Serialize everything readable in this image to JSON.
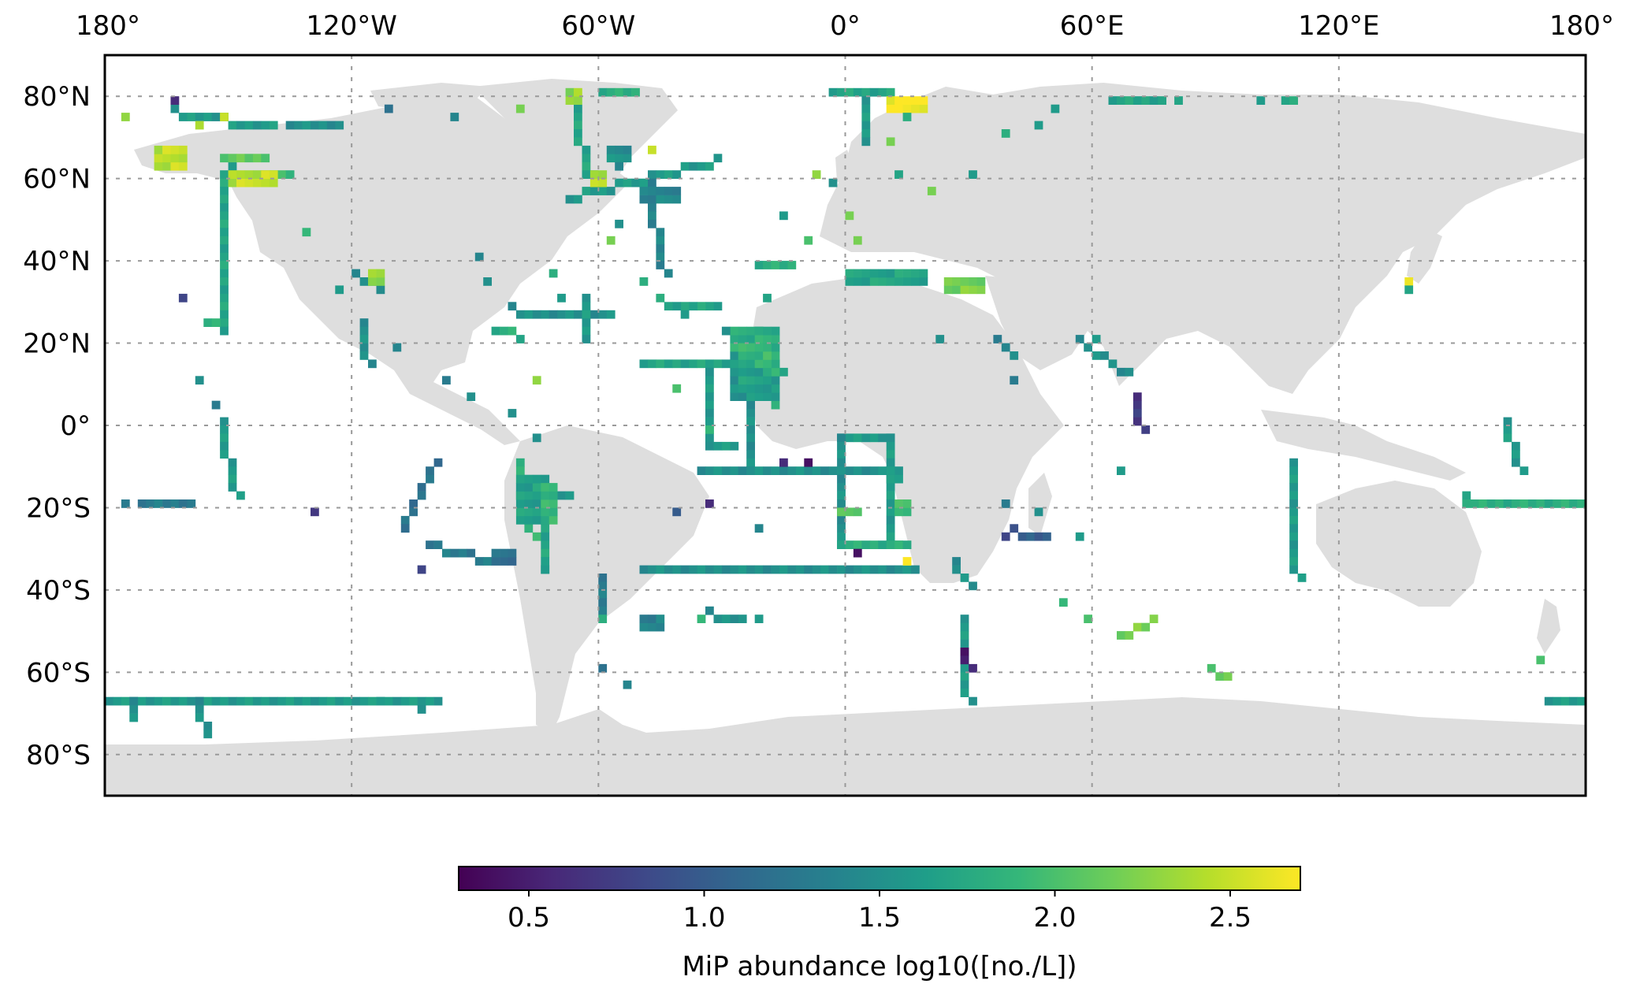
{
  "map": {
    "projection": "PlateCarree",
    "extent": {
      "lon": [
        -180,
        180
      ],
      "lat": [
        -90,
        90
      ]
    },
    "land_color": "#dedede",
    "ocean_color": "#ffffff",
    "gridline_color": "#9a9a9a",
    "x_ticks": [
      {
        "lon": -180,
        "label": "180°"
      },
      {
        "lon": -120,
        "label": "120°W"
      },
      {
        "lon": -60,
        "label": "60°W"
      },
      {
        "lon": 0,
        "label": "0°"
      },
      {
        "lon": 60,
        "label": "60°E"
      },
      {
        "lon": 120,
        "label": "120°E"
      },
      {
        "lon": 180,
        "label": "180°"
      }
    ],
    "y_ticks": [
      {
        "lat": 80,
        "label": "80°N"
      },
      {
        "lat": 60,
        "label": "60°N"
      },
      {
        "lat": 40,
        "label": "40°N"
      },
      {
        "lat": 20,
        "label": "20°N"
      },
      {
        "lat": 0,
        "label": "0°"
      },
      {
        "lat": -20,
        "label": "20°S"
      },
      {
        "lat": -40,
        "label": "40°S"
      },
      {
        "lat": -60,
        "label": "60°S"
      },
      {
        "lat": -80,
        "label": "80°S"
      }
    ]
  },
  "colorbar": {
    "label": "MiP abundance log10([no./L])",
    "vmin": 0.3,
    "vmax": 2.7,
    "colormap": "viridis",
    "colormap_stops": [
      "#440154",
      "#482878",
      "#3e4989",
      "#31688e",
      "#26828e",
      "#1f9e89",
      "#35b779",
      "#6ece58",
      "#b5de2b",
      "#fde725"
    ],
    "ticks": [
      {
        "value": 0.5,
        "label": "0.5"
      },
      {
        "value": 1.0,
        "label": "1.0"
      },
      {
        "value": 1.5,
        "label": "1.5"
      },
      {
        "value": 2.0,
        "label": "2.0"
      },
      {
        "value": 2.5,
        "label": "2.5"
      }
    ]
  },
  "chart_data": {
    "type": "heatmap",
    "cell_size_deg": 2,
    "value_units": "log10([no./L])",
    "segments": [
      {
        "from": [
          -50,
          15
        ],
        "to": [
          -22,
          15
        ],
        "value": 1.7
      },
      {
        "from": [
          -22,
          23
        ],
        "to": [
          -16,
          13
        ],
        "value": 1.8
      },
      {
        "from": [
          -20,
          11
        ],
        "to": [
          -18,
          5
        ],
        "value": 1.9
      },
      {
        "from": [
          -34,
          12
        ],
        "to": [
          -34,
          -4
        ],
        "value": 1.6
      },
      {
        "from": [
          -34,
          -5
        ],
        "to": [
          -28,
          -5
        ],
        "value": 1.6
      },
      {
        "from": [
          -24,
          5
        ],
        "to": [
          -24,
          -12
        ],
        "value": 1.5
      },
      {
        "from": [
          -36,
          -11
        ],
        "to": [
          12,
          -11
        ],
        "value": 1.5
      },
      {
        "from": [
          -50,
          -35
        ],
        "to": [
          16,
          -35
        ],
        "value": 1.5
      },
      {
        "from": [
          -1,
          -3
        ],
        "to": [
          10,
          -3
        ],
        "value": 1.6
      },
      {
        "from": [
          -1,
          -3
        ],
        "to": [
          -1,
          -29
        ],
        "value": 1.5
      },
      {
        "from": [
          11,
          -3
        ],
        "to": [
          12,
          -29
        ],
        "value": 1.6
      },
      {
        "from": [
          -1,
          -29
        ],
        "to": [
          14,
          -29
        ],
        "value": 1.8
      },
      {
        "from": [
          -80,
          -17
        ],
        "to": [
          -68,
          -17
        ],
        "value": 1.6
      },
      {
        "from": [
          -80,
          -10
        ],
        "to": [
          -76,
          -28
        ],
        "value": 1.9
      },
      {
        "from": [
          -72,
          -17
        ],
        "to": [
          -74,
          -36
        ],
        "value": 1.7
      },
      {
        "from": [
          -100,
          -10
        ],
        "to": [
          -108,
          -25
        ],
        "value": 1.2
      },
      {
        "from": [
          -102,
          -29
        ],
        "to": [
          -88,
          -33
        ],
        "value": 1.3
      },
      {
        "from": [
          -172,
          -20
        ],
        "to": [
          -160,
          -20
        ],
        "value": 1.3
      },
      {
        "from": [
          -180,
          -67
        ],
        "to": [
          -100,
          -67
        ],
        "value": 1.6
      },
      {
        "from": [
          -174,
          -67
        ],
        "to": [
          -174,
          -71
        ],
        "value": 1.5
      },
      {
        "from": [
          -158,
          -67
        ],
        "to": [
          -155,
          -75
        ],
        "value": 1.5
      },
      {
        "from": [
          -150,
          62
        ],
        "to": [
          -152,
          22
        ],
        "value": 1.7
      },
      {
        "from": [
          -156,
          24
        ],
        "to": [
          -154,
          24
        ],
        "value": 1.9
      },
      {
        "from": [
          -152,
          0
        ],
        "to": [
          -148,
          -18
        ],
        "value": 1.6
      },
      {
        "from": [
          -152,
          64
        ],
        "to": [
          -142,
          64
        ],
        "value": 2.1
      },
      {
        "from": [
          -142,
          60
        ],
        "to": [
          -136,
          60
        ],
        "value": 1.9
      },
      {
        "from": [
          -164,
          76
        ],
        "to": [
          -140,
          72
        ],
        "value": 1.6
      },
      {
        "from": [
          -136,
          72
        ],
        "to": [
          -124,
          72
        ],
        "value": 1.5
      },
      {
        "from": [
          -119,
          37
        ],
        "to": [
          -114,
          33
        ],
        "value": 1.5
      },
      {
        "from": [
          -118,
          24
        ],
        "to": [
          -116,
          14
        ],
        "value": 1.5
      },
      {
        "from": [
          -82,
          28
        ],
        "to": [
          -58,
          26
        ],
        "value": 1.5
      },
      {
        "from": [
          -64,
          30
        ],
        "to": [
          -64,
          20
        ],
        "value": 1.6
      },
      {
        "from": [
          -86,
          22
        ],
        "to": [
          -82,
          22
        ],
        "value": 1.8
      },
      {
        "from": [
          -68,
          55
        ],
        "to": [
          -32,
          64
        ],
        "value": 1.6
      },
      {
        "from": [
          -48,
          58
        ],
        "to": [
          -44,
          36
        ],
        "value": 1.4
      },
      {
        "from": [
          -60,
          80
        ],
        "to": [
          -52,
          80
        ],
        "value": 1.8
      },
      {
        "from": [
          -66,
          77
        ],
        "to": [
          -62,
          60
        ],
        "value": 1.7
      },
      {
        "from": [
          -22,
          38
        ],
        "to": [
          -14,
          38
        ],
        "value": 1.8
      },
      {
        "from": [
          -32,
          28
        ],
        "to": [
          -46,
          30
        ],
        "value": 1.7
      },
      {
        "from": [
          -4,
          80
        ],
        "to": [
          10,
          80
        ],
        "value": 1.7
      },
      {
        "from": [
          4,
          78
        ],
        "to": [
          4,
          68
        ],
        "value": 1.6
      },
      {
        "from": [
          64,
          78
        ],
        "to": [
          76,
          78
        ],
        "value": 1.7
      },
      {
        "from": [
          106,
          78
        ],
        "to": [
          108,
          78
        ],
        "value": 1.8
      },
      {
        "from": [
          56,
          20
        ],
        "to": [
          68,
          12
        ],
        "value": 1.5
      },
      {
        "from": [
          70,
          6
        ],
        "to": [
          72,
          -2
        ],
        "value": 0.7
      },
      {
        "from": [
          108,
          -10
        ],
        "to": [
          110,
          -38
        ],
        "value": 1.6
      },
      {
        "from": [
          151,
          -18
        ],
        "to": [
          180,
          -20
        ],
        "value": 1.8
      },
      {
        "from": [
          160,
          0
        ],
        "to": [
          164,
          -12
        ],
        "value": 1.6
      },
      {
        "from": [
          170,
          -68
        ],
        "to": [
          180,
          -66
        ],
        "value": 1.6
      },
      {
        "from": [
          28,
          -48
        ],
        "to": [
          30,
          -68
        ],
        "value": 1.6
      },
      {
        "from": [
          28,
          -56
        ],
        "to": [
          30,
          -60
        ],
        "value": 0.5
      },
      {
        "from": [
          66,
          -52
        ],
        "to": [
          74,
          -48
        ],
        "value": 2.2
      },
      {
        "from": [
          88,
          -60
        ],
        "to": [
          92,
          -62
        ],
        "value": 2.1
      },
      {
        "from": [
          26,
          -34
        ],
        "to": [
          30,
          -40
        ],
        "value": 1.5
      },
      {
        "from": [
          -60,
          -38
        ],
        "to": [
          -60,
          -46
        ],
        "value": 1.3
      },
      {
        "from": [
          -34,
          -46
        ],
        "to": [
          -26,
          -48
        ],
        "value": 1.5
      },
      {
        "from": [
          40,
          -26
        ],
        "to": [
          48,
          -28
        ],
        "value": 1.0
      },
      {
        "from": [
          36,
          20
        ],
        "to": [
          40,
          16
        ],
        "value": 1.4
      }
    ],
    "blocks": [
      {
        "lon": [
          -28,
          -16
        ],
        "lat": [
          6,
          24
        ],
        "value": 1.8
      },
      {
        "lon": [
          -26,
          -18
        ],
        "lat": [
          8,
          20
        ],
        "value": 1.9
      },
      {
        "lon": [
          0,
          20
        ],
        "lat": [
          34,
          38
        ],
        "value": 1.7
      },
      {
        "lon": [
          -80,
          -72
        ],
        "lat": [
          -24,
          -12
        ],
        "value": 1.9
      },
      {
        "lon": [
          -74,
          -70
        ],
        "lat": [
          -24,
          -14
        ],
        "value": 2.1
      },
      {
        "lon": [
          -168,
          -160
        ],
        "lat": [
          62,
          68
        ],
        "value": 2.7
      },
      {
        "lon": [
          -150,
          -138
        ],
        "lat": [
          58,
          62
        ],
        "value": 2.7
      },
      {
        "lon": [
          10,
          20
        ],
        "lat": [
          76,
          80
        ],
        "value": 2.7
      },
      {
        "lon": [
          -58,
          -52
        ],
        "lat": [
          64,
          68
        ],
        "value": 1.5
      },
      {
        "lon": [
          -62,
          -58
        ],
        "lat": [
          58,
          62
        ],
        "value": 2.4
      },
      {
        "lon": [
          -50,
          -40
        ],
        "lat": [
          54,
          58
        ],
        "value": 1.4
      },
      {
        "lon": [
          -68,
          -64
        ],
        "lat": [
          78,
          82
        ],
        "value": 2.3
      },
      {
        "lon": [
          -116,
          -112
        ],
        "lat": [
          34,
          38
        ],
        "value": 2.5
      },
      {
        "lon": [
          12,
          16
        ],
        "lat": [
          -22,
          -18
        ],
        "value": 2.2
      },
      {
        "lon": [
          10,
          14
        ],
        "lat": [
          -14,
          -12
        ],
        "value": 2.0
      },
      {
        "lon": [
          -2,
          4
        ],
        "lat": [
          -22,
          -20
        ],
        "value": 2.4
      },
      {
        "lon": [
          -86,
          -80
        ],
        "lat": [
          -33,
          -29
        ],
        "value": 1.4
      },
      {
        "lon": [
          -50,
          -44
        ],
        "lat": [
          -50,
          -46
        ],
        "value": 1.6
      },
      {
        "lon": [
          24,
          34
        ],
        "lat": [
          32,
          36
        ],
        "value": 2.2
      },
      {
        "lon": [
          136,
          138
        ],
        "lat": [
          34,
          36
        ],
        "value": 2.6
      }
    ],
    "points": [
      {
        "lon": -164,
        "lat": 78,
        "value": 0.6
      },
      {
        "lon": -158,
        "lat": 72,
        "value": 2.4
      },
      {
        "lon": -152,
        "lat": 74,
        "value": 2.5
      },
      {
        "lon": -132,
        "lat": 46,
        "value": 1.9
      },
      {
        "lon": -176,
        "lat": 74,
        "value": 2.3
      },
      {
        "lon": -162,
        "lat": 30,
        "value": 0.8
      },
      {
        "lon": -158,
        "lat": 10,
        "value": 1.5
      },
      {
        "lon": -154,
        "lat": 4,
        "value": 1.3
      },
      {
        "lon": -130,
        "lat": -22,
        "value": 0.7
      },
      {
        "lon": -104,
        "lat": -35,
        "value": 0.8
      },
      {
        "lon": -112,
        "lat": 76,
        "value": 1.2
      },
      {
        "lon": -96,
        "lat": 74,
        "value": 1.4
      },
      {
        "lon": -80,
        "lat": 76,
        "value": 2.2
      },
      {
        "lon": -76,
        "lat": 10,
        "value": 2.3
      },
      {
        "lon": -82,
        "lat": 2,
        "value": 1.5
      },
      {
        "lon": -76,
        "lat": -4,
        "value": 1.5
      },
      {
        "lon": -56,
        "lat": 48,
        "value": 1.5
      },
      {
        "lon": -58,
        "lat": 44,
        "value": 2.2
      },
      {
        "lon": -50,
        "lat": 34,
        "value": 1.8
      },
      {
        "lon": -40,
        "lat": 26,
        "value": 1.6
      },
      {
        "lon": -30,
        "lat": 22,
        "value": 1.5
      },
      {
        "lon": -42,
        "lat": 8,
        "value": 2.0
      },
      {
        "lon": -34,
        "lat": -2,
        "value": 1.9
      },
      {
        "lon": -10,
        "lat": -9,
        "value": 0.4
      },
      {
        "lon": -16,
        "lat": -9,
        "value": 0.6
      },
      {
        "lon": -22,
        "lat": -26,
        "value": 1.4
      },
      {
        "lon": -34,
        "lat": -19,
        "value": 0.6
      },
      {
        "lon": -42,
        "lat": -22,
        "value": 1.0
      },
      {
        "lon": -60,
        "lat": -60,
        "value": 1.2
      },
      {
        "lon": -54,
        "lat": -64,
        "value": 1.4
      },
      {
        "lon": -60,
        "lat": -47,
        "value": 1.8
      },
      {
        "lon": -36,
        "lat": -48,
        "value": 1.9
      },
      {
        "lon": -22,
        "lat": -48,
        "value": 1.6
      },
      {
        "lon": 0,
        "lat": 50,
        "value": 2.2
      },
      {
        "lon": -16,
        "lat": 50,
        "value": 1.6
      },
      {
        "lon": -8,
        "lat": 60,
        "value": 2.3
      },
      {
        "lon": 10,
        "lat": 68,
        "value": 2.2
      },
      {
        "lon": 12,
        "lat": 60,
        "value": 1.7
      },
      {
        "lon": 20,
        "lat": 56,
        "value": 2.2
      },
      {
        "lon": 14,
        "lat": 74,
        "value": 1.8
      },
      {
        "lon": 38,
        "lat": 70,
        "value": 1.8
      },
      {
        "lon": 46,
        "lat": 72,
        "value": 1.6
      },
      {
        "lon": 50,
        "lat": 76,
        "value": 1.6
      },
      {
        "lon": 2,
        "lat": 44,
        "value": 2.2
      },
      {
        "lon": -10,
        "lat": 44,
        "value": 2.0
      },
      {
        "lon": 2,
        "lat": -31,
        "value": 0.4
      },
      {
        "lon": 14,
        "lat": -34,
        "value": 2.7
      },
      {
        "lon": 38,
        "lat": -20,
        "value": 1.3
      },
      {
        "lon": 46,
        "lat": -22,
        "value": 1.5
      },
      {
        "lon": 38,
        "lat": -28,
        "value": 0.8
      },
      {
        "lon": 56,
        "lat": -28,
        "value": 1.6
      },
      {
        "lon": 52,
        "lat": -44,
        "value": 1.9
      },
      {
        "lon": 58,
        "lat": -48,
        "value": 2.0
      },
      {
        "lon": 66,
        "lat": -12,
        "value": 1.6
      },
      {
        "lon": 60,
        "lat": 20,
        "value": 1.6
      },
      {
        "lon": 150,
        "lat": -20,
        "value": 1.8
      },
      {
        "lon": 168,
        "lat": -58,
        "value": 2.0
      },
      {
        "lon": 136,
        "lat": 32,
        "value": 1.7
      },
      {
        "lon": -176,
        "lat": -20,
        "value": 1.3
      },
      {
        "lon": -114,
        "lat": -68,
        "value": 1.6
      },
      {
        "lon": -104,
        "lat": -70,
        "value": 1.5
      },
      {
        "lon": -88,
        "lat": 34,
        "value": 1.5
      },
      {
        "lon": -90,
        "lat": 40,
        "value": 1.4
      },
      {
        "lon": -70,
        "lat": 30,
        "value": 1.6
      },
      {
        "lon": -72,
        "lat": 36,
        "value": 1.8
      },
      {
        "lon": -48,
        "lat": 66,
        "value": 2.5
      },
      {
        "lon": -56,
        "lat": 62,
        "value": 1.4
      },
      {
        "lon": -124,
        "lat": 32,
        "value": 1.6
      },
      {
        "lon": -110,
        "lat": 18,
        "value": 1.4
      },
      {
        "lon": -98,
        "lat": 10,
        "value": 1.3
      },
      {
        "lon": -92,
        "lat": 7,
        "value": 1.5
      },
      {
        "lon": -80,
        "lat": 20,
        "value": 1.7
      },
      {
        "lon": -20,
        "lat": 30,
        "value": 1.7
      },
      {
        "lon": -4,
        "lat": 58,
        "value": 1.5
      },
      {
        "lon": 30,
        "lat": 60,
        "value": 1.6
      },
      {
        "lon": 22,
        "lat": 20,
        "value": 1.5
      },
      {
        "lon": 40,
        "lat": 10,
        "value": 1.3
      },
      {
        "lon": 100,
        "lat": 78,
        "value": 1.6
      },
      {
        "lon": 80,
        "lat": 78,
        "value": 1.7
      }
    ]
  }
}
